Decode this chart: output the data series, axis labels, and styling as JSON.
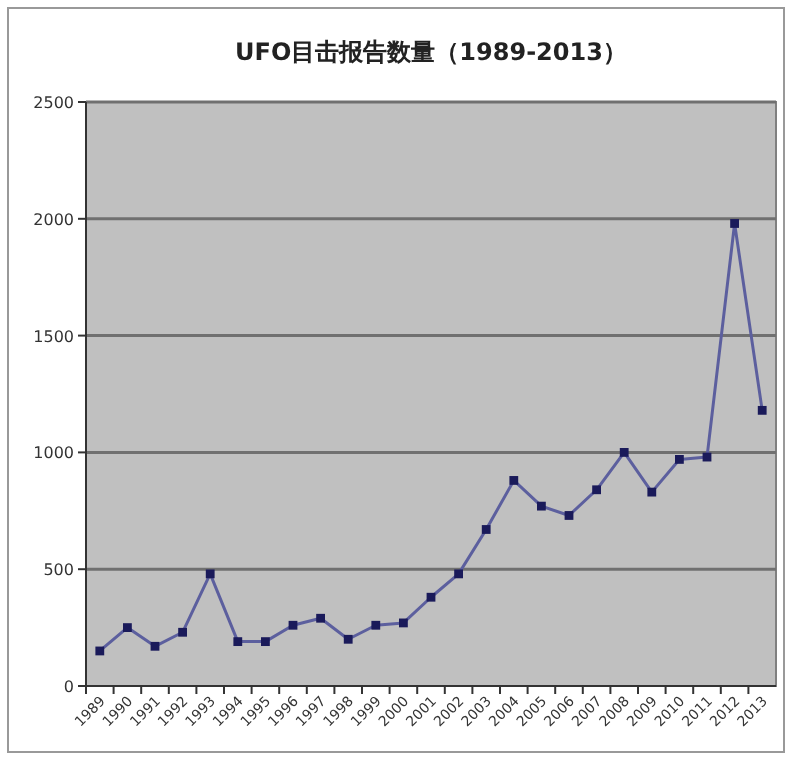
{
  "chart_data": {
    "type": "line",
    "title": "UFO目击报告数量（1989-2013）",
    "categories": [
      "1989",
      "1990",
      "1991",
      "1992",
      "1993",
      "1994",
      "1995",
      "1996",
      "1997",
      "1998",
      "1999",
      "2000",
      "2001",
      "2002",
      "2003",
      "2004",
      "2005",
      "2006",
      "2007",
      "2008",
      "2009",
      "2010",
      "2011",
      "2012",
      "2013"
    ],
    "series": [
      {
        "color": "#5c5f9e",
        "values": [
          150,
          250,
          170,
          230,
          480,
          190,
          190,
          260,
          290,
          200,
          260,
          270,
          380,
          480,
          670,
          880,
          770,
          730,
          840,
          1000,
          830,
          970,
          980,
          1980,
          1180
        ]
      }
    ],
    "ylim": [
      0,
      2500
    ],
    "yticks": [
      0,
      500,
      1000,
      1500,
      2000,
      2500
    ],
    "grid": "y",
    "marker": "square",
    "line_style": "solid"
  }
}
